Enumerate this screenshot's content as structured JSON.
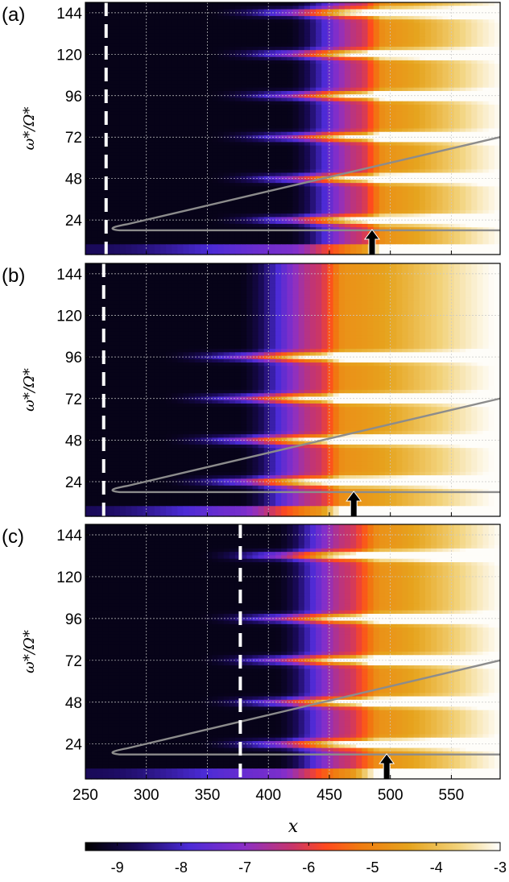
{
  "chart_data": [
    {
      "type": "heatmap",
      "panel_label": "(a)",
      "ylabel": "ω*/Ω*",
      "xlim": [
        250,
        590
      ],
      "ylim": [
        4,
        150
      ],
      "y_ticks": [
        24,
        48,
        72,
        96,
        120,
        144
      ],
      "x_ticks": [
        250,
        300,
        350,
        400,
        450,
        500,
        550
      ],
      "front_x": [
        440,
        480,
        488
      ],
      "harmonic_peaks": [
        24,
        48,
        72,
        96,
        120,
        144
      ],
      "vertical_dashed_x": 267,
      "arrow_x": 485,
      "neutral_curve": {
        "nose_x": 270,
        "nose_y": 19,
        "upper_end_y": 72,
        "lower_end_y": 18
      }
    },
    {
      "type": "heatmap",
      "panel_label": "(b)",
      "ylabel": "ω*/Ω*",
      "xlim": [
        250,
        590
      ],
      "ylim": [
        4,
        150
      ],
      "y_ticks": [
        24,
        48,
        72,
        96,
        120,
        144
      ],
      "x_ticks": [
        250,
        300,
        350,
        400,
        450,
        500,
        550
      ],
      "front_x": [
        400,
        445,
        455
      ],
      "harmonic_peaks": [
        24,
        48,
        72,
        96
      ],
      "vertical_dashed_x": 265,
      "arrow_x": 470,
      "neutral_curve": {
        "nose_x": 270,
        "nose_y": 19,
        "upper_end_y": 72,
        "lower_end_y": 18
      }
    },
    {
      "type": "heatmap",
      "panel_label": "(c)",
      "ylabel": "ω*/Ω*",
      "xlim": [
        250,
        590
      ],
      "ylim": [
        4,
        150
      ],
      "y_ticks": [
        24,
        48,
        72,
        96,
        120,
        144
      ],
      "x_ticks": [
        250,
        300,
        350,
        400,
        450,
        500,
        550
      ],
      "front_x": [
        430,
        470,
        485
      ],
      "harmonic_peaks": [
        24,
        48,
        72,
        96,
        132
      ],
      "vertical_dashed_x": 377,
      "arrow_x": 497,
      "neutral_curve": {
        "nose_x": 270,
        "nose_y": 19,
        "upper_end_y": 72,
        "lower_end_y": 18
      }
    }
  ],
  "xlabel": "x",
  "colorbar": {
    "min": -9.5,
    "max": -3,
    "ticks": [
      -9,
      -8,
      -7,
      -6,
      -5,
      -4,
      -3
    ],
    "colors": [
      "#000000",
      "#1a0a5a",
      "#4b2bd6",
      "#8a2fc8",
      "#c8356a",
      "#ff4a1e",
      "#f07a10",
      "#e6a41e",
      "#f2d27a",
      "#ffffff"
    ]
  }
}
